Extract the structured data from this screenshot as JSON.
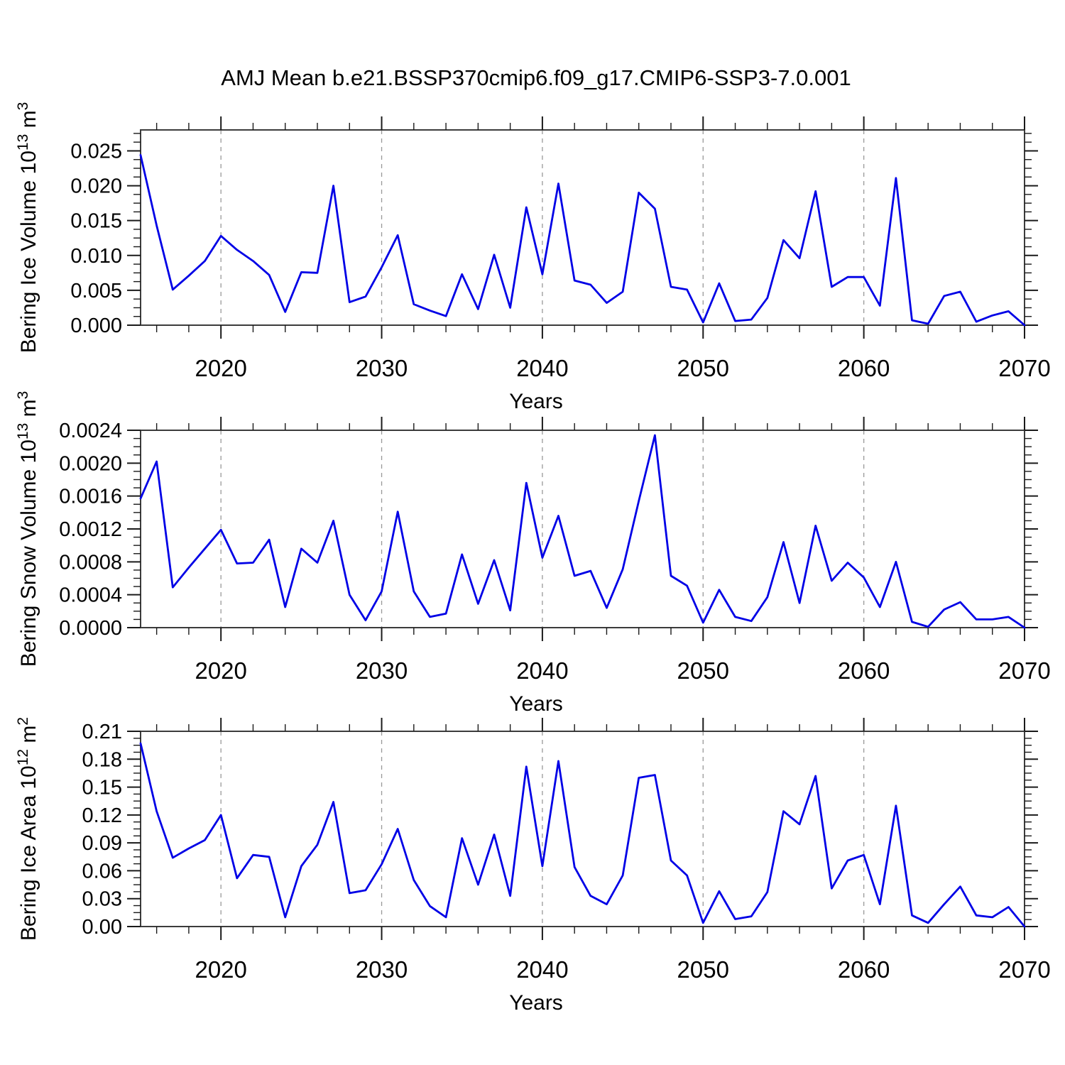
{
  "page": {
    "title": "AMJ Mean b.e21.BSSP370cmip6.f09_g17.CMIP6-SSP3-7.0.001",
    "background": "#ffffff"
  },
  "colors": {
    "line": "#0000e6",
    "frame": "#3c3c3c",
    "tick": "#1a1a1a",
    "grid": "#999999",
    "text": "#000000"
  },
  "chart_data": {
    "type": "line",
    "title": "AMJ Mean b.e21.BSSP370cmip6.f09_g17.CMIP6-SSP3-7.0.001",
    "xlabel": "Years",
    "legend": null,
    "grid_style": "vertical dashed gridlines at decade years",
    "x_range": [
      2015,
      2070
    ],
    "x_ticks_major": [
      2020,
      2030,
      2040,
      2050,
      2060,
      2070
    ],
    "x_minor_step": 2,
    "grid_vlines": [
      2020,
      2030,
      2040,
      2050,
      2060
    ],
    "x": [
      2015,
      2016,
      2017,
      2018,
      2019,
      2020,
      2021,
      2022,
      2023,
      2024,
      2025,
      2026,
      2027,
      2028,
      2029,
      2030,
      2031,
      2032,
      2033,
      2034,
      2035,
      2036,
      2037,
      2038,
      2039,
      2040,
      2041,
      2042,
      2043,
      2044,
      2045,
      2046,
      2047,
      2048,
      2049,
      2050,
      2051,
      2052,
      2053,
      2054,
      2055,
      2056,
      2057,
      2058,
      2059,
      2060,
      2061,
      2062,
      2063,
      2064,
      2065,
      2066,
      2067,
      2068,
      2069,
      2070
    ],
    "panels": [
      {
        "name": "bering-ice-volume",
        "ylabel": "Bering Ice Volume 10¹³ m³",
        "ylabel_parts": [
          {
            "t": "Bering Ice Volume 10"
          },
          {
            "t": "13",
            "sup": true
          },
          {
            "t": " m"
          },
          {
            "t": "3",
            "sup": true
          }
        ],
        "ylim": [
          0,
          0.028
        ],
        "ytick_major_step": 0.005,
        "ytick_minor_step": 0.00125,
        "ytick_labels": [
          "0.000",
          "0.005",
          "0.010",
          "0.015",
          "0.020",
          "0.025"
        ],
        "values": [
          0.0244,
          0.0143,
          0.0051,
          0.0071,
          0.0092,
          0.0128,
          0.0108,
          0.0092,
          0.0072,
          0.0019,
          0.0076,
          0.0075,
          0.02,
          0.0033,
          0.0041,
          0.0083,
          0.0129,
          0.003,
          0.0021,
          0.0013,
          0.0073,
          0.0023,
          0.0101,
          0.0025,
          0.0169,
          0.0073,
          0.0203,
          0.0064,
          0.0058,
          0.0032,
          0.0048,
          0.019,
          0.0167,
          0.0055,
          0.0051,
          0.0004,
          0.006,
          0.0006,
          0.0008,
          0.0039,
          0.0122,
          0.0096,
          0.0192,
          0.0055,
          0.0069,
          0.0069,
          0.0028,
          0.0211,
          0.0007,
          0.0002,
          0.0042,
          0.0048,
          0.0005,
          0.0014,
          0.002,
          0.0
        ]
      },
      {
        "name": "bering-snow-volume",
        "ylabel": "Bering Snow Volume 10¹³ m³",
        "ylabel_parts": [
          {
            "t": "Bering Snow Volume 10"
          },
          {
            "t": "13",
            "sup": true
          },
          {
            "t": " m"
          },
          {
            "t": "3",
            "sup": true
          }
        ],
        "ylim": [
          0,
          0.0024
        ],
        "ytick_major_step": 0.0004,
        "ytick_minor_step": 0.0001,
        "ytick_labels": [
          "0.0000",
          "0.0004",
          "0.0008",
          "0.0012",
          "0.0016",
          "0.0020",
          "0.0024"
        ],
        "values": [
          0.00157,
          0.00202,
          0.00049,
          0.00073,
          0.00096,
          0.00119,
          0.00078,
          0.00079,
          0.00107,
          0.00025,
          0.00096,
          0.00079,
          0.0013,
          0.0004,
          9e-05,
          0.00044,
          0.00141,
          0.00044,
          0.00013,
          0.00017,
          0.00089,
          0.00029,
          0.00082,
          0.00021,
          0.00176,
          0.00085,
          0.00136,
          0.00063,
          0.00069,
          0.00024,
          0.00071,
          0.00154,
          0.00234,
          0.00063,
          0.00051,
          6e-05,
          0.00046,
          0.00013,
          8e-05,
          0.00037,
          0.00104,
          0.0003,
          0.00124,
          0.00057,
          0.00079,
          0.00061,
          0.00025,
          0.0008,
          7e-05,
          1e-05,
          0.00022,
          0.00031,
          0.0001,
          0.0001,
          0.00013,
          0.0
        ]
      },
      {
        "name": "bering-ice-area",
        "ylabel": "Bering Ice Area 10¹² m²",
        "ylabel_parts": [
          {
            "t": "Bering Ice Area 10"
          },
          {
            "t": "12",
            "sup": true
          },
          {
            "t": " m"
          },
          {
            "t": "2",
            "sup": true
          }
        ],
        "ylim": [
          0,
          0.21
        ],
        "ytick_major_step": 0.03,
        "ytick_minor_step": 0.0075,
        "ytick_labels": [
          "0.00",
          "0.03",
          "0.06",
          "0.09",
          "0.12",
          "0.15",
          "0.18",
          "0.21"
        ],
        "values": [
          0.197,
          0.124,
          0.074,
          0.084,
          0.093,
          0.12,
          0.052,
          0.077,
          0.075,
          0.01,
          0.065,
          0.088,
          0.134,
          0.036,
          0.039,
          0.067,
          0.105,
          0.05,
          0.022,
          0.01,
          0.095,
          0.045,
          0.099,
          0.033,
          0.172,
          0.065,
          0.178,
          0.064,
          0.033,
          0.024,
          0.055,
          0.16,
          0.163,
          0.071,
          0.055,
          0.004,
          0.038,
          0.008,
          0.011,
          0.037,
          0.124,
          0.11,
          0.162,
          0.041,
          0.071,
          0.077,
          0.024,
          0.13,
          0.012,
          0.004,
          0.024,
          0.043,
          0.012,
          0.01,
          0.021,
          0.0
        ]
      }
    ]
  }
}
